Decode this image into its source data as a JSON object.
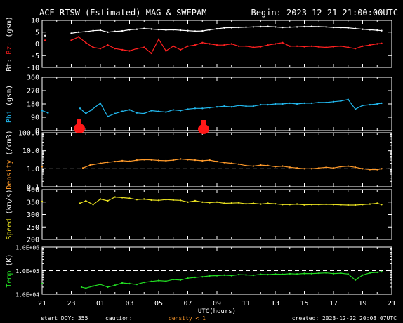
{
  "header": {
    "title": "ACE RTSW (Estimated) MAG & SWEPAM",
    "begin": "Begin: 2023-12-21 21:00:00UTC"
  },
  "footer": {
    "start_doy": "start DOY: 355",
    "caution": "caution:",
    "density_note": "density < 1",
    "created": "created: 2023-12-22 20:08:07UTC"
  },
  "colors": {
    "background": "#000000",
    "axis": "#ffffff",
    "bt": "#ffffff",
    "bz": "#ff2020",
    "phi": "#22b8ee",
    "density": "#ff9a2a",
    "speed": "#e8e020",
    "temp": "#22dd22",
    "marker": "#ff1818"
  },
  "chart_data": {
    "type": "line",
    "x_tick_labels": [
      "21",
      "23",
      "01",
      "03",
      "05",
      "07",
      "09",
      "11",
      "13",
      "15",
      "17",
      "19",
      "21"
    ],
    "xlabel": "UTC(hours)",
    "x_range_hours": [
      21,
      45
    ],
    "panels": [
      {
        "id": "mag",
        "ylabel_parts": [
          "Bt",
          "Bz",
          "(gsm)"
        ],
        "ylim": [
          -10,
          10
        ],
        "ticks": [
          "10",
          "5",
          "0",
          "-5",
          "-10"
        ],
        "dashed_reference": 0,
        "series": [
          {
            "name": "Bt",
            "x": [
              21.2,
              23.0,
              23.5,
              24.0,
              24.5,
              25.0,
              25.5,
              26.0,
              26.5,
              27.0,
              27.5,
              28.0,
              28.5,
              29.0,
              29.5,
              30.0,
              30.5,
              31.0,
              31.5,
              32.0,
              32.5,
              33.0,
              33.5,
              34.0,
              34.5,
              35.0,
              35.5,
              36.0,
              36.5,
              37.0,
              37.5,
              38.0,
              38.5,
              39.0,
              39.5,
              40.0,
              40.5,
              41.0,
              41.5,
              42.0,
              42.5,
              43.0,
              43.5,
              44.0,
              44.3
            ],
            "y": [
              3.5,
              4.5,
              5.0,
              5.2,
              5.6,
              5.8,
              5.0,
              5.3,
              5.5,
              6.0,
              6.2,
              6.5,
              6.3,
              6.1,
              5.9,
              6.0,
              5.8,
              5.6,
              5.4,
              5.5,
              6.0,
              6.4,
              6.8,
              6.9,
              7.0,
              7.1,
              7.2,
              7.3,
              7.4,
              7.2,
              7.0,
              7.1,
              7.2,
              7.3,
              7.4,
              7.3,
              7.2,
              7.0,
              6.9,
              6.8,
              6.5,
              6.2,
              6.0,
              5.8,
              5.6
            ]
          },
          {
            "name": "Bz",
            "x": [
              21.2,
              23.0,
              23.5,
              24.0,
              24.5,
              25.0,
              25.5,
              26.0,
              26.5,
              27.0,
              27.5,
              28.0,
              28.5,
              29.0,
              29.5,
              30.0,
              30.5,
              31.0,
              31.5,
              32.0,
              32.5,
              33.0,
              33.5,
              34.0,
              34.5,
              35.0,
              35.5,
              36.0,
              36.5,
              37.0,
              37.5,
              38.0,
              38.5,
              39.0,
              39.5,
              40.0,
              40.5,
              41.0,
              41.5,
              42.0,
              42.5,
              43.0,
              43.5,
              44.0,
              44.3
            ],
            "y": [
              1.5,
              1.5,
              3.0,
              0.5,
              -1.5,
              -2.0,
              -0.5,
              -2.0,
              -2.5,
              -3.0,
              -2.0,
              -1.5,
              -4.0,
              2.0,
              -3.0,
              -1.0,
              -2.5,
              -1.0,
              -0.5,
              0.5,
              0.0,
              -0.5,
              -0.5,
              0.0,
              -1.0,
              -1.0,
              -1.5,
              -1.2,
              -0.5,
              0.0,
              0.5,
              -1.0,
              -1.0,
              -1.2,
              -1.0,
              -1.3,
              -1.5,
              -1.2,
              -1.0,
              -1.5,
              -2.0,
              -1.0,
              -0.5,
              0.0,
              0.2
            ]
          }
        ]
      },
      {
        "id": "phi",
        "ylabel_parts": [
          "Phi",
          "(gsm)"
        ],
        "ylim": [
          0,
          360
        ],
        "ticks": [
          "360",
          "270",
          "180",
          "90",
          "0"
        ],
        "series": [
          {
            "name": "Phi",
            "x": [
              21.0,
              21.4,
              23.6,
              24.0,
              24.4,
              25.0,
              25.5,
              26.0,
              26.5,
              27.0,
              27.5,
              28.0,
              28.5,
              29.0,
              29.5,
              30.0,
              30.5,
              31.0,
              31.5,
              32.0,
              32.5,
              33.0,
              33.5,
              34.0,
              34.5,
              35.0,
              35.5,
              36.0,
              36.5,
              37.0,
              37.5,
              38.0,
              38.5,
              39.0,
              39.5,
              40.0,
              40.5,
              41.0,
              41.5,
              42.0,
              42.5,
              43.0,
              43.5,
              44.0,
              44.3
            ],
            "y": [
              135,
              120,
              150,
              115,
              140,
              185,
              95,
              115,
              130,
              140,
              120,
              115,
              135,
              130,
              125,
              140,
              135,
              145,
              150,
              150,
              155,
              160,
              165,
              160,
              170,
              165,
              165,
              175,
              175,
              180,
              180,
              185,
              180,
              185,
              185,
              190,
              190,
              195,
              200,
              210,
              145,
              170,
              175,
              180,
              185
            ]
          }
        ]
      },
      {
        "id": "density",
        "ylabel_parts": [
          "Density",
          "(/cm3)"
        ],
        "ylim_log": [
          0.1,
          100
        ],
        "ticks": [
          "100.0",
          "10.0",
          "1.0",
          "0.1"
        ],
        "dashed_reference": 1.0,
        "series": [
          {
            "name": "Density",
            "x": [
              21.0,
              23.8,
              24.3,
              25.0,
              25.5,
              26.0,
              26.5,
              27.0,
              27.5,
              28.0,
              28.5,
              29.0,
              29.5,
              30.0,
              30.5,
              31.0,
              31.5,
              32.0,
              32.5,
              33.0,
              33.5,
              34.0,
              34.5,
              35.0,
              35.5,
              36.0,
              36.5,
              37.0,
              37.5,
              38.0,
              38.5,
              39.0,
              39.5,
              40.0,
              40.5,
              41.0,
              41.5,
              42.0,
              42.5,
              43.0,
              43.5,
              44.0,
              44.3
            ],
            "y": [
              1.3,
              1.1,
              1.6,
              2.0,
              2.3,
              2.5,
              2.8,
              2.6,
              3.0,
              3.2,
              3.1,
              2.9,
              2.8,
              3.0,
              3.5,
              3.2,
              3.0,
              2.8,
              3.0,
              2.5,
              2.2,
              2.0,
              1.8,
              1.5,
              1.4,
              1.6,
              1.5,
              1.3,
              1.4,
              1.2,
              1.1,
              1.0,
              1.0,
              1.1,
              1.2,
              1.1,
              1.3,
              1.4,
              1.2,
              1.0,
              0.9,
              0.9,
              1.0
            ]
          }
        ]
      },
      {
        "id": "speed",
        "ylabel_parts": [
          "Speed",
          "(km/s)"
        ],
        "ylim": [
          200,
          400
        ],
        "ticks": [
          "400",
          "350",
          "300",
          "250",
          "200"
        ],
        "series": [
          {
            "name": "Speed",
            "x": [
              21.0,
              23.6,
              24.0,
              24.5,
              25.0,
              25.5,
              26.0,
              26.5,
              27.0,
              27.5,
              28.0,
              28.5,
              29.0,
              29.5,
              30.0,
              30.5,
              31.0,
              31.5,
              32.0,
              32.5,
              33.0,
              33.5,
              34.0,
              34.5,
              35.0,
              35.5,
              36.0,
              36.5,
              37.0,
              37.5,
              38.0,
              38.5,
              39.0,
              39.5,
              40.0,
              40.5,
              41.0,
              41.5,
              42.0,
              42.5,
              43.0,
              43.5,
              44.0,
              44.3
            ],
            "y": [
              352,
              345,
              355,
              340,
              362,
              355,
              370,
              368,
              365,
              360,
              362,
              358,
              357,
              360,
              358,
              357,
              350,
              355,
              350,
              348,
              350,
              345,
              346,
              347,
              343,
              345,
              342,
              345,
              343,
              340,
              340,
              342,
              339,
              340,
              340,
              341,
              340,
              339,
              338,
              338,
              340,
              342,
              345,
              340
            ]
          }
        ]
      },
      {
        "id": "temp",
        "ylabel_parts": [
          "Temp",
          "(K)"
        ],
        "ylim_log": [
          10000,
          1000000
        ],
        "ticks": [
          "1.0E+06",
          "1.0E+05",
          "1.0E+04"
        ],
        "dashed_reference": 100000,
        "series": [
          {
            "name": "Temp",
            "x": [
              21.0,
              23.7,
              24.0,
              24.5,
              25.0,
              25.5,
              26.0,
              26.5,
              27.0,
              27.5,
              28.0,
              28.5,
              29.0,
              29.5,
              30.0,
              30.5,
              31.0,
              31.5,
              32.0,
              32.5,
              33.0,
              33.5,
              34.0,
              34.5,
              35.0,
              35.5,
              36.0,
              36.5,
              37.0,
              37.5,
              38.0,
              38.5,
              39.0,
              39.5,
              40.0,
              40.5,
              41.0,
              41.5,
              42.0,
              42.5,
              43.0,
              43.5,
              44.0,
              44.3
            ],
            "y": [
              28000,
              20000,
              18000,
              22000,
              26000,
              20000,
              24000,
              30000,
              28000,
              26000,
              32000,
              35000,
              38000,
              36000,
              42000,
              40000,
              48000,
              52000,
              55000,
              60000,
              62000,
              65000,
              62000,
              68000,
              66000,
              64000,
              70000,
              68000,
              72000,
              70000,
              74000,
              72000,
              76000,
              75000,
              78000,
              80000,
              75000,
              78000,
              72000,
              40000,
              65000,
              80000,
              85000,
              90000
            ]
          }
        ]
      }
    ]
  }
}
